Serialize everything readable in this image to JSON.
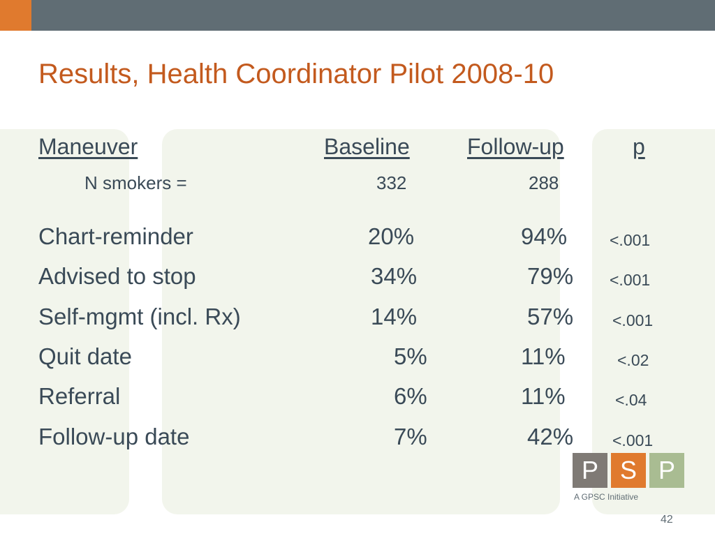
{
  "slide": {
    "title": "Results, Health Coordinator Pilot 2008-10",
    "page_number": "42"
  },
  "table": {
    "headers": {
      "maneuver": "Maneuver",
      "baseline": "Baseline",
      "followup": "Follow-up",
      "p": "p"
    },
    "n_row": {
      "label": "N smokers =",
      "baseline": "332",
      "followup": "288"
    },
    "rows": [
      {
        "maneuver": "Chart-reminder",
        "baseline": "20%",
        "followup": "94%",
        "p": "<.001"
      },
      {
        "maneuver": "Advised to stop",
        "baseline": "34%",
        "followup": "79%",
        "p": "<.001"
      },
      {
        "maneuver": "Self-mgmt (incl. Rx)",
        "baseline": "14%",
        "followup": "57%",
        "p": "<.001"
      },
      {
        "maneuver": "Quit date",
        "baseline": "5%",
        "followup": "11%",
        "p": "<.02"
      },
      {
        "maneuver": "Referral",
        "baseline": "6%",
        "followup": "11%",
        "p": "<.04"
      },
      {
        "maneuver": "Follow-up date",
        "baseline": "7%",
        "followup": "42%",
        "p": "<.001"
      }
    ]
  },
  "logo": {
    "letters": [
      "P",
      "S",
      "P"
    ],
    "tagline": "A GPSC Initiative"
  },
  "colors": {
    "top_bar": "#606d74",
    "top_bar_accent": "#e07a2e",
    "title": "#c35a1e",
    "text": "#3a4a57",
    "panel": "#f2f5ec",
    "logo_left": "#7f7a75",
    "logo_middle": "#e07a2e",
    "logo_right": "#a9bc92"
  }
}
